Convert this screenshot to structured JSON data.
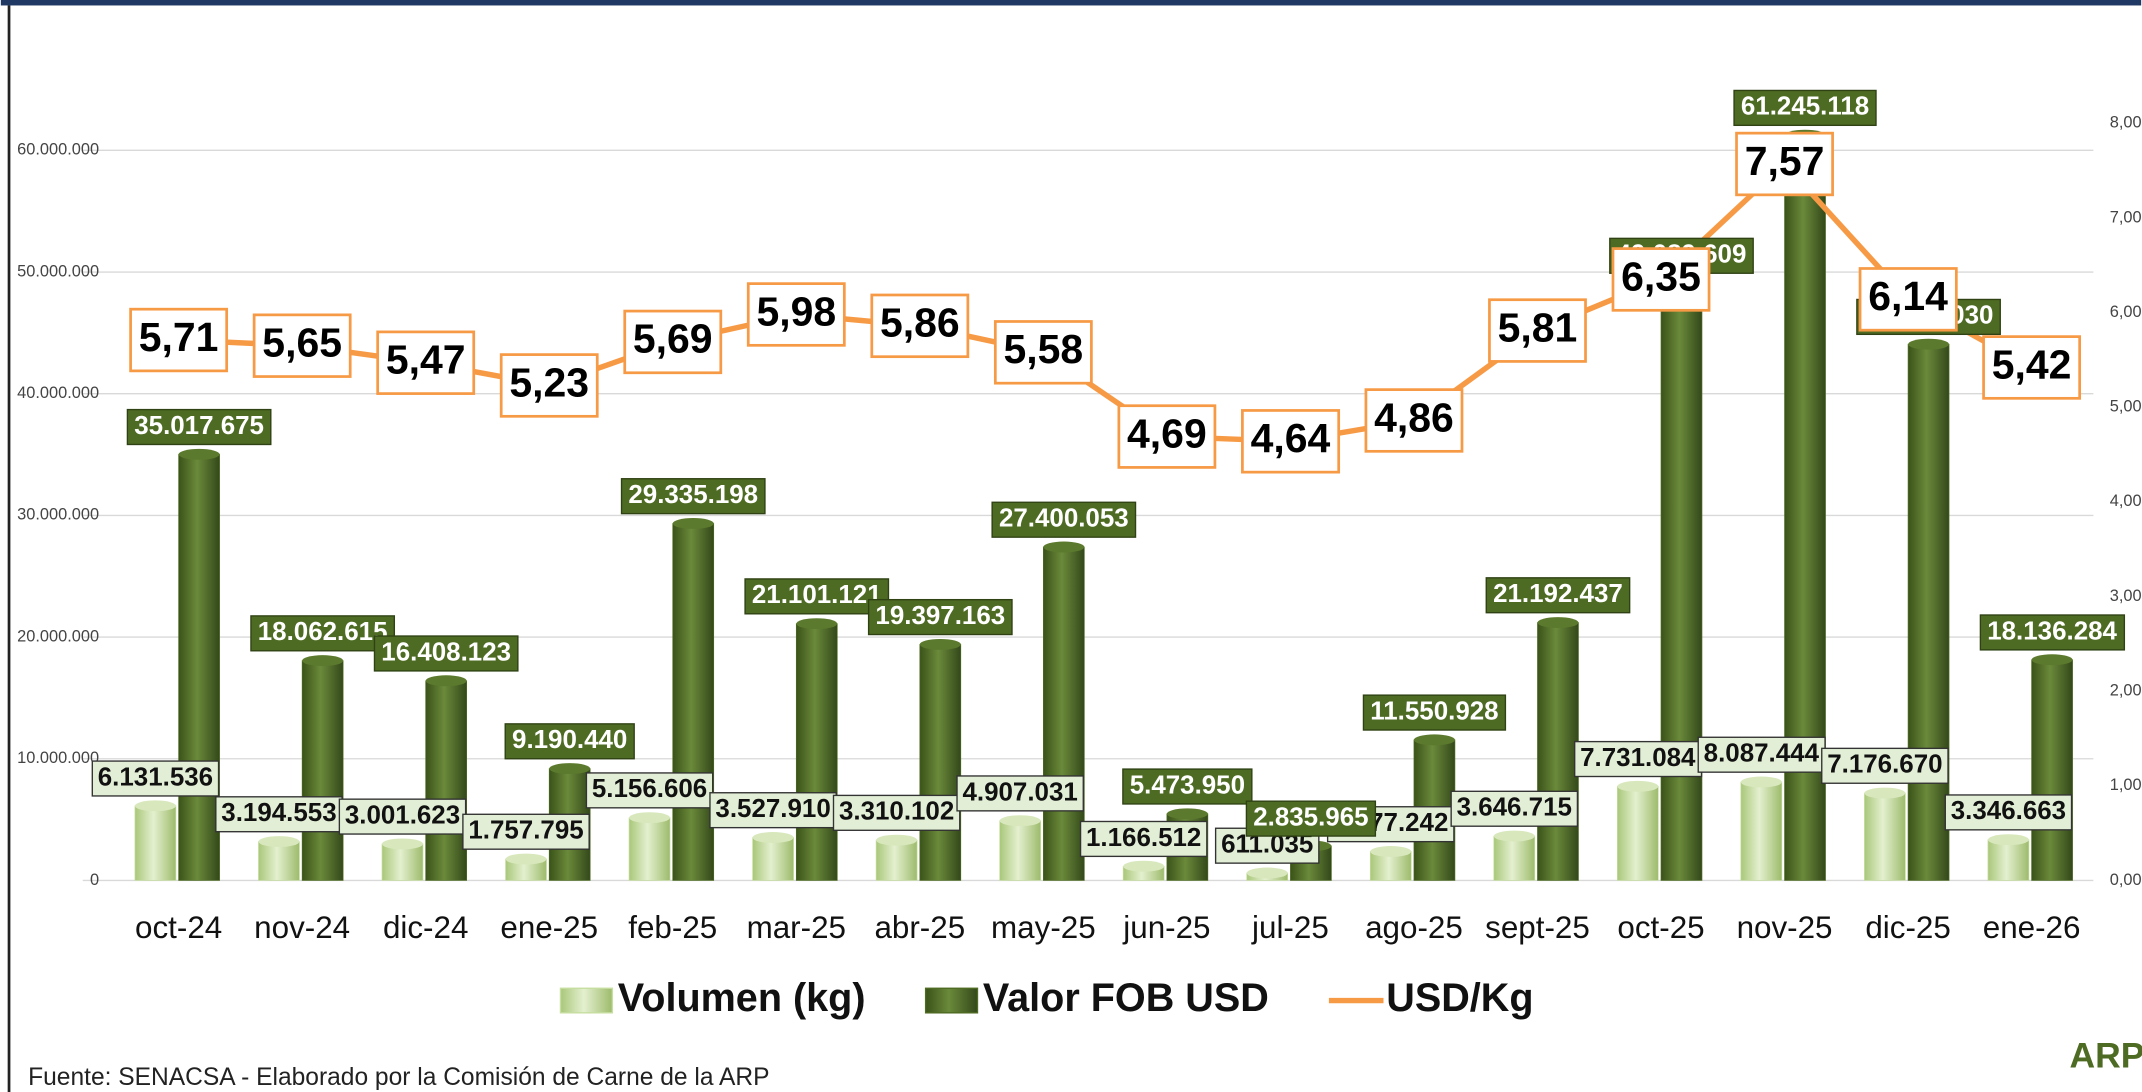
{
  "chart_data": {
    "type": "bar-line",
    "categories": [
      "oct-24",
      "nov-24",
      "dic-24",
      "ene-25",
      "feb-25",
      "mar-25",
      "abr-25",
      "may-25",
      "jun-25",
      "jul-25",
      "ago-25",
      "sept-25",
      "oct-25",
      "nov-25",
      "dic-25",
      "ene-26"
    ],
    "series": [
      {
        "name": "Volumen (kg)",
        "color": "#c6dea0",
        "values": [
          6131536,
          3194553,
          3001623,
          1757795,
          5156606,
          3527910,
          3310102,
          4907031,
          1166512,
          611035,
          2377242,
          3646715,
          7731084,
          8087444,
          7176670,
          3346663
        ],
        "value_labels": [
          "6.131.536",
          "3.194.553",
          "3.001.623",
          "1.757.795",
          "5.156.606",
          "3.527.910",
          "3.310.102",
          "4.907.031",
          "1.166.512",
          "611.035",
          "2.377.242",
          "3.646.715",
          "7.731.084",
          "8.087.444",
          "7.176.670",
          "3.346.663"
        ]
      },
      {
        "name": "Valor FOB USD",
        "color": "#4e6b23",
        "values": [
          35017675,
          18062615,
          16408123,
          9190440,
          29335198,
          21101121,
          19397163,
          27400053,
          5473950,
          2835965,
          11550928,
          21192437,
          49089609,
          61245118,
          44068030,
          18136284
        ],
        "value_labels": [
          "35.017.675",
          "18.062.615",
          "16.408.123",
          "9.190.440",
          "29.335.198",
          "21.101.121",
          "19.397.163",
          "27.400.053",
          "5.473.950",
          "2.835.965",
          "11.550.928",
          "21.192.437",
          "49.089.609",
          "61.245.118",
          "44.068.030",
          "18.136.284"
        ]
      },
      {
        "name": "USD/Kg",
        "color": "#f79a46",
        "axis": "y2",
        "type": "line",
        "values": [
          5.71,
          5.65,
          5.47,
          5.23,
          5.69,
          5.98,
          5.86,
          5.58,
          4.69,
          4.64,
          4.86,
          5.81,
          6.35,
          7.57,
          6.14,
          5.42
        ],
        "value_labels": [
          "5,71",
          "5,65",
          "5,47",
          "5,23",
          "5,69",
          "5,98",
          "5,86",
          "5,58",
          "4,69",
          "4,64",
          "4,86",
          "5,81",
          "6,35",
          "7,57",
          "6,14",
          "5,42"
        ]
      }
    ],
    "ylim": [
      0,
      70000000
    ],
    "yticks": [
      0,
      {
        "value": 10000000,
        "label": "10.000.000"
      },
      {
        "value": 20000000,
        "label": "20.000.000"
      },
      {
        "value": 30000000,
        "label": "30.000.000"
      },
      {
        "value": 40000000,
        "label": "40.000.000"
      },
      {
        "value": 50000000,
        "label": "50.000.000"
      },
      {
        "value": 60000000,
        "label": "60.000.000"
      }
    ],
    "y2lim": [
      0,
      9
    ],
    "y2ticks": [
      {
        "value": 0,
        "label": "0,00"
      },
      {
        "value": 1,
        "label": "1,00"
      },
      {
        "value": 2,
        "label": "2,00"
      },
      {
        "value": 3,
        "label": "3,00"
      },
      {
        "value": 4,
        "label": "4,00"
      },
      {
        "value": 5,
        "label": "5,00"
      },
      {
        "value": 6,
        "label": "6,00"
      },
      {
        "value": 7,
        "label": "7,00"
      },
      {
        "value": 8,
        "label": "8,00"
      }
    ],
    "grid": true,
    "legend": "bottom",
    "source": "Fuente: SENACSA  - Elaborado por la Comisión de Carne de la ARP",
    "logo": "ARP"
  }
}
